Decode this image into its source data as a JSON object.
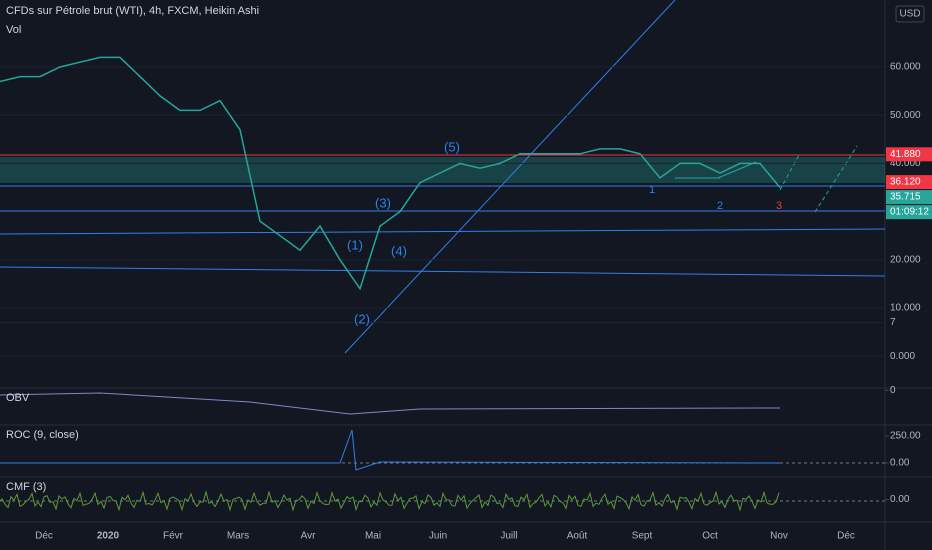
{
  "header": {
    "title": "CFDs sur Pétrole brut (WTI), 4h, FXCM, Heikin Ashi",
    "volume_label": "Vol",
    "currency": "USD"
  },
  "price_pane": {
    "ylim": [
      -6.6,
      73.9
    ],
    "yticks": [
      {
        "value": 0,
        "label": "0.000"
      },
      {
        "value": 10,
        "label": "10.000"
      },
      {
        "value": 20,
        "label": "20.000"
      },
      {
        "value": 40,
        "label": "40.000"
      },
      {
        "value": 50,
        "label": "50.000"
      },
      {
        "value": 60,
        "label": "60.000"
      },
      7
    ],
    "price": [
      57,
      58,
      58,
      60,
      61,
      62,
      62,
      58,
      54,
      51,
      51,
      53,
      47,
      28,
      25,
      22,
      27,
      20,
      14,
      27,
      30,
      36,
      38,
      40,
      39,
      40,
      42,
      42,
      42,
      42,
      43,
      43,
      42,
      37,
      40,
      40,
      38,
      40,
      40,
      35
    ],
    "tags": [
      {
        "value": 41.88,
        "label": "41.880",
        "color": "#f23645"
      },
      {
        "value": 36.12,
        "label": "36.120",
        "color": "#f23645"
      },
      {
        "value": 35.715,
        "label": "35.715",
        "color": "#26a69a"
      }
    ],
    "countdown": "01:09:12",
    "waves": [
      "(1)",
      "(2)",
      "(3)",
      "(4)",
      "(5)",
      "1",
      "2",
      "3"
    ]
  },
  "panes": [
    {
      "name": "OBV",
      "ylim": [
        -16,
        1
      ],
      "yticks": [
        0
      ]
    },
    {
      "name": "ROC (9, close)",
      "ylim": [
        -130,
        352
      ],
      "yticks": [
        {
          "value": 250,
          "label": "250.00"
        },
        {
          "value": 0,
          "label": "0.00"
        }
      ]
    },
    {
      "name": "CMF (3)",
      "ylim": [
        -1,
        1
      ],
      "yticks": [
        {
          "value": 0,
          "label": "0.00"
        }
      ]
    }
  ],
  "time_axis": [
    "Déc",
    "2020",
    "Févr",
    "Mars",
    "Avr",
    "Mai",
    "Juin",
    "Juill",
    "Août",
    "Sept",
    "Oct",
    "Nov",
    "Déc"
  ]
}
